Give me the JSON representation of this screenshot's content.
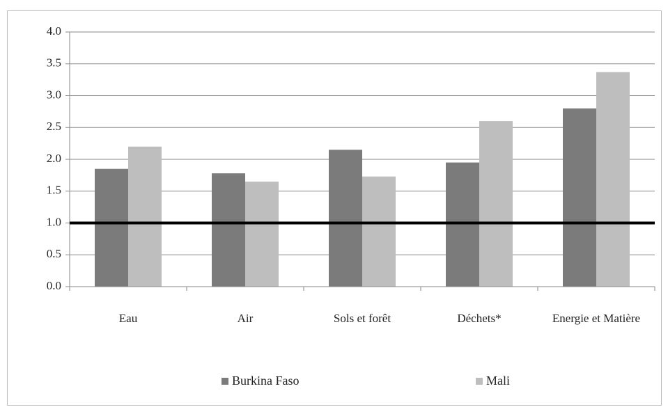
{
  "chart_data": {
    "type": "bar",
    "categories": [
      "Eau",
      "Air",
      "Sols et forêt",
      "Déchets*",
      "Energie et Matière"
    ],
    "series": [
      {
        "name": "Burkina Faso",
        "color": "#7b7b7b",
        "values": [
          1.85,
          1.78,
          2.15,
          1.95,
          2.8
        ]
      },
      {
        "name": "Mali",
        "color": "#bebebe",
        "values": [
          2.2,
          1.65,
          1.73,
          2.6,
          3.37
        ]
      }
    ],
    "ylim": [
      0,
      4
    ],
    "yticks": [
      {
        "value": 0,
        "label": "0.0"
      },
      0.5,
      {
        "value": 1,
        "label": "1.0"
      },
      1.5,
      {
        "value": 2,
        "label": "2.0"
      },
      2.5,
      {
        "value": 3,
        "label": "3.0"
      },
      3.5,
      {
        "value": 4,
        "label": "4.0"
      }
    ],
    "reference_line": 1,
    "grid": true,
    "legend": "bottom"
  }
}
